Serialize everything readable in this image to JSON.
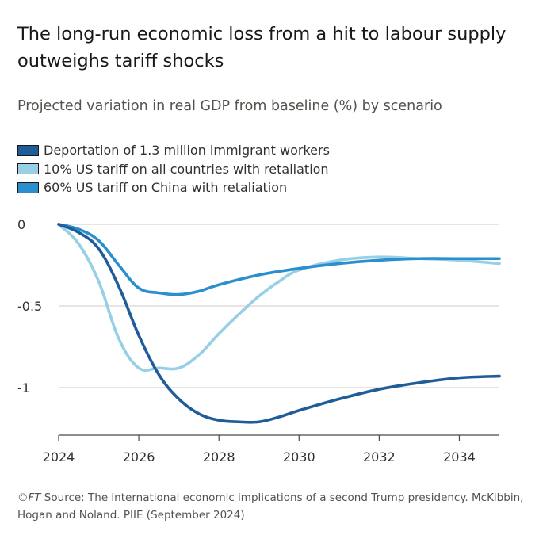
{
  "title": "The long-run economic loss from a hit to labour supply outweighs tariff shocks",
  "subtitle": "Projected variation in real GDP from baseline (%) by scenario",
  "footer": {
    "ft_mark": "©FT",
    "source_text": " Source: The international economic implications of a second Trump presidency. McKibbin, Hogan and Noland. PIIE (September 2024)"
  },
  "chart_data": {
    "type": "line",
    "title": "Projected variation in real GDP from baseline (%) by scenario",
    "xlabel": "",
    "ylabel": "",
    "xlim": [
      2024,
      2035
    ],
    "ylim": [
      -1.3,
      0.02
    ],
    "x_ticks": [
      2024,
      2026,
      2028,
      2030,
      2032,
      2034
    ],
    "x_tick_labels": [
      "2024",
      "2026",
      "2028",
      "2030",
      "2032",
      "2034"
    ],
    "y_ticks": [
      0,
      -0.5,
      -1
    ],
    "y_tick_labels": [
      "0",
      "-0.5",
      "-1"
    ],
    "grid": true,
    "legend_position": "top-left",
    "series": [
      {
        "name": "Deportation of 1.3 million immigrant workers",
        "color": "#1f5c99",
        "x": [
          2024,
          2024.5,
          2025,
          2025.5,
          2026,
          2026.5,
          2027,
          2027.5,
          2028,
          2028.5,
          2029,
          2029.5,
          2030,
          2031,
          2032,
          2033,
          2034,
          2035
        ],
        "values": [
          0,
          -0.05,
          -0.15,
          -0.38,
          -0.68,
          -0.92,
          -1.07,
          -1.16,
          -1.2,
          -1.21,
          -1.21,
          -1.18,
          -1.14,
          -1.07,
          -1.01,
          -0.97,
          -0.94,
          -0.93
        ]
      },
      {
        "name": "10% US tariff on all countries with retaliation",
        "color": "#96cfe6",
        "x": [
          2024,
          2024.5,
          2025,
          2025.5,
          2026,
          2026.5,
          2027,
          2027.5,
          2028,
          2028.5,
          2029,
          2029.5,
          2030,
          2031,
          2032,
          2033,
          2034,
          2035
        ],
        "values": [
          0,
          -0.12,
          -0.35,
          -0.7,
          -0.88,
          -0.88,
          -0.88,
          -0.8,
          -0.67,
          -0.55,
          -0.44,
          -0.35,
          -0.28,
          -0.22,
          -0.2,
          -0.21,
          -0.22,
          -0.24
        ]
      },
      {
        "name": "60% US tariff on China with retaliation",
        "color": "#2a8fce",
        "x": [
          2024,
          2024.5,
          2025,
          2025.5,
          2026,
          2026.5,
          2027,
          2027.5,
          2028,
          2029,
          2030,
          2031,
          2032,
          2033,
          2034,
          2035
        ],
        "values": [
          0,
          -0.03,
          -0.1,
          -0.25,
          -0.39,
          -0.42,
          -0.43,
          -0.41,
          -0.37,
          -0.31,
          -0.27,
          -0.24,
          -0.22,
          -0.21,
          -0.21,
          -0.21
        ]
      }
    ]
  }
}
